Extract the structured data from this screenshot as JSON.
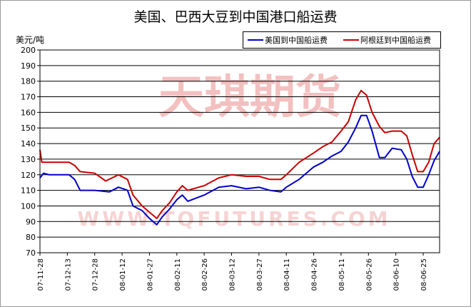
{
  "chart_data": {
    "type": "line",
    "title": "美国、巴西大豆到中国港口船运费",
    "ylabel": "美元/吨",
    "ylim": [
      70,
      200
    ],
    "ytick_step": 10,
    "grid": "horizontal",
    "legend": "top-right",
    "x_tick_labels": [
      "07-11-28",
      "07-12-13",
      "07-12-28",
      "08-01-12",
      "08-01-27",
      "08-02-11",
      "08-02-26",
      "08-03-12",
      "08-03-27",
      "08-04-11",
      "08-04-26",
      "08-05-11",
      "08-05-26",
      "08-06-10",
      "08-06-25"
    ],
    "series": [
      {
        "name": "美国到中国船运费",
        "color": "#0000cc",
        "points": [
          [
            "07-11-28",
            118
          ],
          [
            "07-11-30",
            121
          ],
          [
            "07-12-03",
            120
          ],
          [
            "07-12-10",
            120
          ],
          [
            "07-12-14",
            120
          ],
          [
            "07-12-17",
            117
          ],
          [
            "07-12-20",
            110
          ],
          [
            "07-12-28",
            110
          ],
          [
            "08-01-05",
            109
          ],
          [
            "08-01-10",
            112
          ],
          [
            "08-01-15",
            110
          ],
          [
            "08-01-18",
            100
          ],
          [
            "08-01-23",
            97
          ],
          [
            "08-01-27",
            92
          ],
          [
            "08-01-31",
            88
          ],
          [
            "08-02-03",
            93
          ],
          [
            "08-02-07",
            98
          ],
          [
            "08-02-11",
            104
          ],
          [
            "08-02-14",
            107
          ],
          [
            "08-02-17",
            103
          ],
          [
            "08-02-26",
            107
          ],
          [
            "08-03-05",
            112
          ],
          [
            "08-03-12",
            113
          ],
          [
            "08-03-20",
            111
          ],
          [
            "08-03-27",
            112
          ],
          [
            "08-04-02",
            110
          ],
          [
            "08-04-08",
            109
          ],
          [
            "08-04-11",
            112
          ],
          [
            "08-04-18",
            117
          ],
          [
            "08-04-26",
            125
          ],
          [
            "08-05-01",
            128
          ],
          [
            "08-05-06",
            132
          ],
          [
            "08-05-11",
            135
          ],
          [
            "08-05-15",
            141
          ],
          [
            "08-05-19",
            150
          ],
          [
            "08-05-22",
            158
          ],
          [
            "08-05-25",
            158
          ],
          [
            "08-05-28",
            148
          ],
          [
            "08-06-01",
            131
          ],
          [
            "08-06-04",
            131
          ],
          [
            "08-06-08",
            137
          ],
          [
            "08-06-13",
            136
          ],
          [
            "08-06-16",
            130
          ],
          [
            "08-06-19",
            119
          ],
          [
            "08-06-22",
            112
          ],
          [
            "08-06-25",
            112
          ],
          [
            "08-06-28",
            120
          ],
          [
            "08-07-01",
            129
          ],
          [
            "08-07-04",
            135
          ]
        ]
      },
      {
        "name": "阿根廷到中国船运费",
        "color": "#cc0000",
        "points": [
          [
            "07-11-28",
            136
          ],
          [
            "07-11-29",
            128
          ],
          [
            "07-12-03",
            128
          ],
          [
            "07-12-10",
            128
          ],
          [
            "07-12-14",
            128
          ],
          [
            "07-12-17",
            126
          ],
          [
            "07-12-20",
            122
          ],
          [
            "07-12-28",
            121
          ],
          [
            "08-01-03",
            116
          ],
          [
            "08-01-10",
            120
          ],
          [
            "08-01-15",
            117
          ],
          [
            "08-01-18",
            107
          ],
          [
            "08-01-23",
            100
          ],
          [
            "08-01-27",
            96
          ],
          [
            "08-01-31",
            92
          ],
          [
            "08-02-03",
            97
          ],
          [
            "08-02-07",
            102
          ],
          [
            "08-02-11",
            109
          ],
          [
            "08-02-14",
            113
          ],
          [
            "08-02-17",
            110
          ],
          [
            "08-02-26",
            113
          ],
          [
            "08-03-05",
            118
          ],
          [
            "08-03-12",
            120
          ],
          [
            "08-03-20",
            119
          ],
          [
            "08-03-27",
            119
          ],
          [
            "08-04-02",
            117
          ],
          [
            "08-04-08",
            117
          ],
          [
            "08-04-11",
            120
          ],
          [
            "08-04-18",
            128
          ],
          [
            "08-04-26",
            134
          ],
          [
            "08-05-01",
            138
          ],
          [
            "08-05-06",
            141
          ],
          [
            "08-05-11",
            148
          ],
          [
            "08-05-15",
            154
          ],
          [
            "08-05-19",
            168
          ],
          [
            "08-05-22",
            174
          ],
          [
            "08-05-25",
            171
          ],
          [
            "08-05-28",
            160
          ],
          [
            "08-06-01",
            151
          ],
          [
            "08-06-04",
            147
          ],
          [
            "08-06-08",
            148
          ],
          [
            "08-06-13",
            148
          ],
          [
            "08-06-16",
            145
          ],
          [
            "08-06-19",
            133
          ],
          [
            "08-06-22",
            122
          ],
          [
            "08-06-25",
            122
          ],
          [
            "08-06-28",
            128
          ],
          [
            "08-07-01",
            140
          ],
          [
            "08-07-04",
            144
          ]
        ]
      }
    ],
    "watermark": {
      "main": "天琪期货",
      "sub": "WWW.TQFUTURES.COM",
      "color": "#f3c0c0"
    }
  }
}
